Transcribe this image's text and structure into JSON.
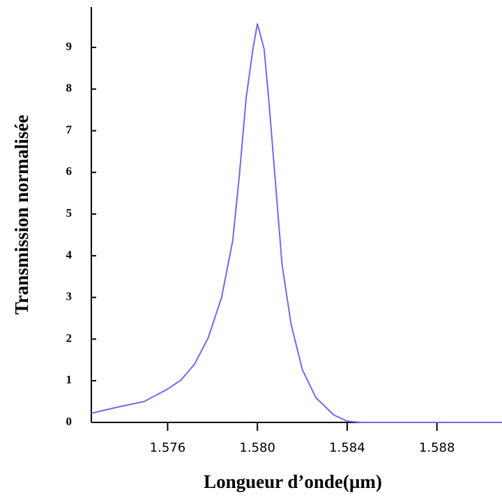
{
  "chart_data": {
    "type": "line",
    "x_label": "Longueur  d’onde(µm)",
    "y_label": "Transmission normalisée",
    "series": [
      {
        "color": "#6b6bf0",
        "x": [
          1.5726,
          1.5738,
          1.57495,
          1.576,
          1.5766,
          1.5772,
          1.5778,
          1.5784,
          1.5789,
          1.5792,
          1.5795,
          1.5798,
          1.58,
          1.5803,
          1.5805,
          1.5808,
          1.5811,
          1.5815,
          1.582,
          1.5826,
          1.5834,
          1.584,
          1.5846,
          1.5909
        ],
        "values": [
          0.22,
          0.37,
          0.5,
          0.8,
          1.02,
          1.4,
          2.02,
          2.99,
          4.36,
          5.95,
          7.79,
          8.96,
          9.57,
          8.96,
          7.79,
          5.79,
          3.78,
          2.36,
          1.27,
          0.6,
          0.18,
          0.03,
          0,
          0
        ]
      }
    ],
    "xlim": [
      1.5726,
      1.5909
    ],
    "xticks": [
      {
        "value": 1.576,
        "label": "1.576"
      },
      {
        "value": 1.58,
        "label": "1.580"
      },
      {
        "value": 1.584,
        "label": "1.584"
      },
      {
        "value": 1.588,
        "label": "1.588"
      }
    ],
    "ylim": [
      0,
      9.97
    ],
    "yticks": [
      0,
      1,
      2,
      3,
      4,
      5,
      6,
      7,
      8,
      9
    ],
    "grid": false
  }
}
